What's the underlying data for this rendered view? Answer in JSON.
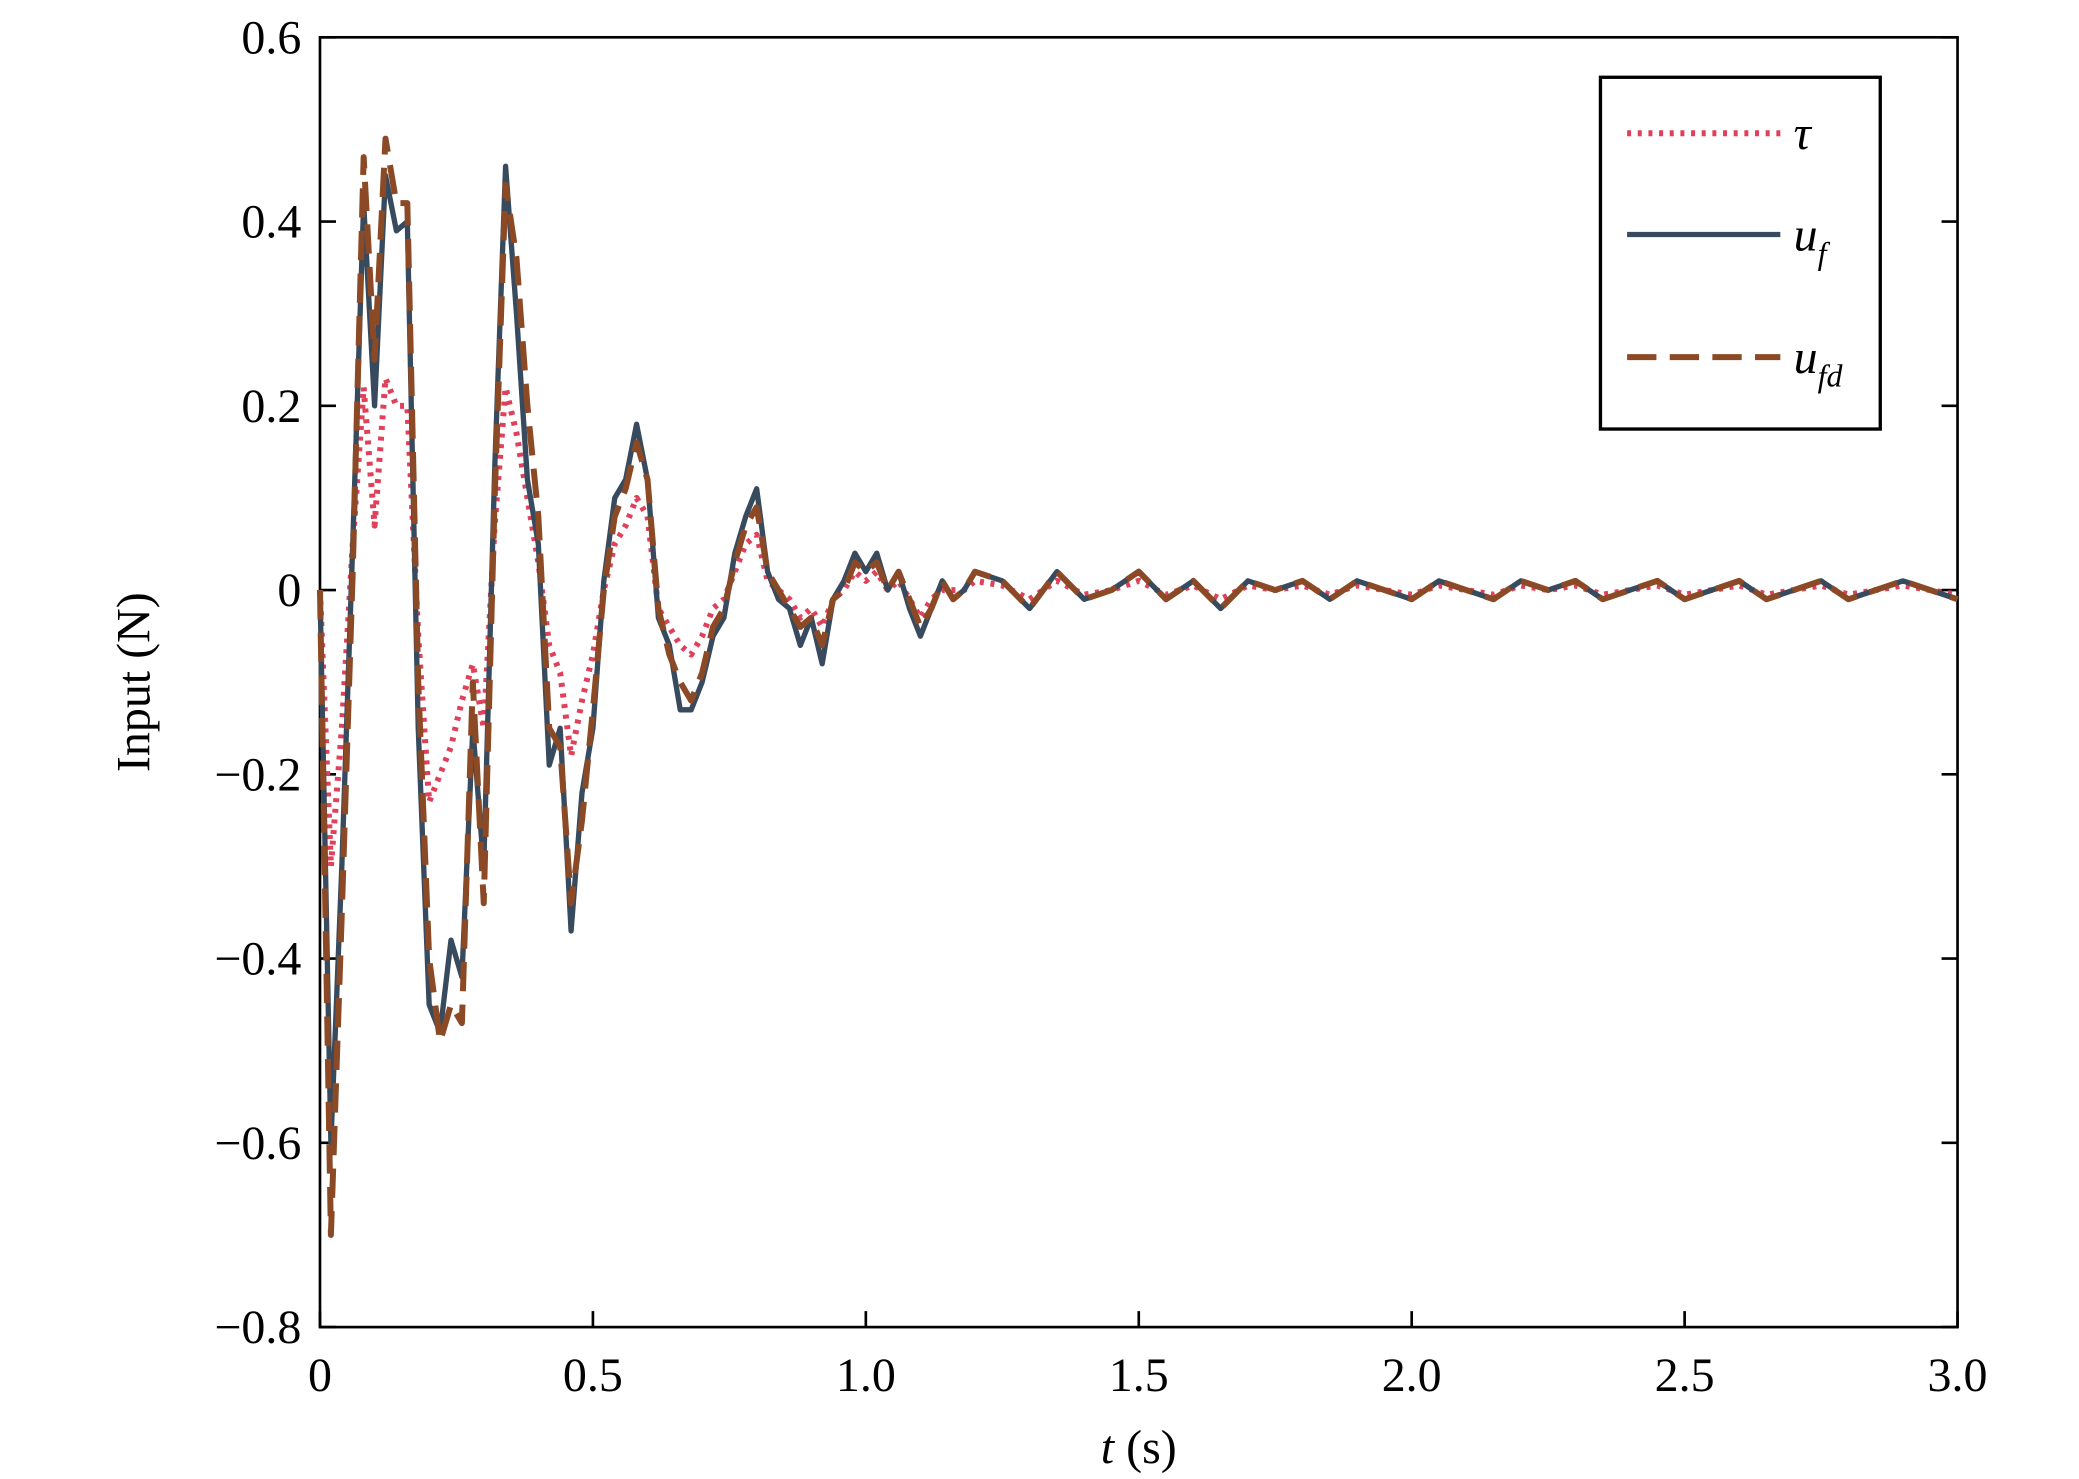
{
  "chart_data": {
    "type": "line",
    "xlabel": "t (s)",
    "ylabel": "Input (N)",
    "xlim": [
      0,
      3
    ],
    "ylim": [
      -0.8,
      0.6
    ],
    "xticks": [
      0,
      0.5,
      {
        "value": 1,
        "label": "1.0"
      },
      1.5,
      {
        "value": 2,
        "label": "2.0"
      },
      2.5,
      {
        "value": 3,
        "label": "3.0"
      }
    ],
    "yticks": [
      {
        "value": -0.8,
        "label": "−0.8"
      },
      {
        "value": -0.6,
        "label": "−0.6"
      },
      {
        "value": -0.4,
        "label": "−0.4"
      },
      {
        "value": -0.2,
        "label": "−0.2"
      },
      0,
      0.2,
      0.4,
      0.6
    ],
    "legend": "upper right",
    "x": [
      0,
      0.02,
      0.04,
      0.06,
      0.08,
      0.1,
      0.12,
      0.14,
      0.16,
      0.18,
      0.2,
      0.22,
      0.24,
      0.26,
      0.28,
      0.3,
      0.32,
      0.34,
      0.36,
      0.38,
      0.4,
      0.42,
      0.44,
      0.46,
      0.48,
      0.5,
      0.52,
      0.54,
      0.56,
      0.58,
      0.6,
      0.62,
      0.64,
      0.66,
      0.68,
      0.7,
      0.72,
      0.74,
      0.76,
      0.78,
      0.8,
      0.82,
      0.84,
      0.86,
      0.88,
      0.9,
      0.92,
      0.94,
      0.96,
      0.98,
      1,
      1.02,
      1.04,
      1.06,
      1.08,
      1.1,
      1.12,
      1.14,
      1.16,
      1.18,
      1.2,
      1.25,
      1.3,
      1.35,
      1.4,
      1.45,
      1.5,
      1.55,
      1.6,
      1.65,
      1.7,
      1.75,
      1.8,
      1.85,
      1.9,
      1.95,
      2,
      2.05,
      2.1,
      2.15,
      2.2,
      2.25,
      2.3,
      2.35,
      2.4,
      2.45,
      2.5,
      2.55,
      2.6,
      2.65,
      2.7,
      2.75,
      2.8,
      2.85,
      2.9,
      2.95,
      3
    ],
    "series": [
      {
        "name": "τ",
        "color": "#e0405a",
        "style": "dotted",
        "values": [
          0,
          -0.3,
          -0.15,
          0.05,
          0.22,
          0.07,
          0.23,
          0.2,
          0.2,
          -0.05,
          -0.23,
          -0.2,
          -0.17,
          -0.12,
          -0.08,
          -0.15,
          0.07,
          0.22,
          0.17,
          0.1,
          0.03,
          -0.06,
          -0.09,
          -0.18,
          -0.12,
          -0.07,
          0,
          0.05,
          0.07,
          0.1,
          0.08,
          -0.02,
          -0.04,
          -0.06,
          -0.07,
          -0.05,
          -0.02,
          -0.01,
          0.02,
          0.05,
          0.06,
          0.01,
          0,
          -0.01,
          -0.03,
          -0.02,
          -0.04,
          -0.01,
          0,
          0.02,
          0.01,
          0.02,
          0,
          0.01,
          -0.01,
          -0.03,
          -0.01,
          0,
          0,
          0,
          0.01,
          0.005,
          -0.01,
          0.01,
          -0.005,
          0,
          0.01,
          -0.005,
          0.005,
          -0.01,
          0.005,
          0,
          0.005,
          -0.005,
          0.005,
          0,
          -0.005,
          0.005,
          0,
          -0.005,
          0.005,
          0,
          0.005,
          -0.005,
          0,
          0.005,
          -0.005,
          0,
          0.005,
          -0.005,
          0,
          0.005,
          -0.005,
          0,
          0.005,
          0,
          -0.005
        ]
      },
      {
        "name": "u_f",
        "color": "#374a5e",
        "style": "solid",
        "values": [
          0,
          -0.6,
          -0.3,
          0.05,
          0.42,
          0.2,
          0.45,
          0.39,
          0.4,
          -0.15,
          -0.45,
          -0.48,
          -0.38,
          -0.42,
          -0.15,
          -0.3,
          0.13,
          0.46,
          0.3,
          0.12,
          0.05,
          -0.19,
          -0.15,
          -0.37,
          -0.22,
          -0.15,
          0.01,
          0.1,
          0.12,
          0.18,
          0.12,
          -0.03,
          -0.06,
          -0.13,
          -0.13,
          -0.1,
          -0.05,
          -0.03,
          0.04,
          0.08,
          0.11,
          0.02,
          -0.01,
          -0.02,
          -0.06,
          -0.03,
          -0.08,
          -0.01,
          0.01,
          0.04,
          0.02,
          0.04,
          0,
          0.02,
          -0.02,
          -0.05,
          -0.02,
          0.01,
          -0.01,
          0,
          0.02,
          0.01,
          -0.02,
          0.02,
          -0.01,
          0,
          0.02,
          -0.01,
          0.01,
          -0.02,
          0.01,
          0,
          0.01,
          -0.01,
          0.01,
          0,
          -0.01,
          0.01,
          0,
          -0.01,
          0.01,
          0,
          0.01,
          -0.01,
          0,
          0.01,
          -0.01,
          0,
          0.01,
          -0.01,
          0,
          0.01,
          -0.01,
          0,
          0.01,
          0,
          -0.01
        ]
      },
      {
        "name": "u_fd",
        "color": "#8b4a25",
        "style": "dashed",
        "values": [
          0,
          -0.7,
          -0.35,
          0.02,
          0.47,
          0.25,
          0.49,
          0.42,
          0.42,
          -0.1,
          -0.4,
          -0.49,
          -0.45,
          -0.47,
          -0.1,
          -0.34,
          0.1,
          0.44,
          0.36,
          0.2,
          0.08,
          -0.15,
          -0.17,
          -0.34,
          -0.25,
          -0.13,
          0,
          0.08,
          0.11,
          0.16,
          0.12,
          -0.02,
          -0.07,
          -0.1,
          -0.12,
          -0.09,
          -0.04,
          -0.02,
          0.03,
          0.07,
          0.09,
          0.02,
          0,
          -0.02,
          -0.04,
          -0.03,
          -0.06,
          -0.01,
          0,
          0.03,
          0.02,
          0.03,
          0,
          0.02,
          -0.01,
          -0.04,
          -0.02,
          0.01,
          -0.01,
          0,
          0.02,
          0.01,
          -0.02,
          0.02,
          -0.01,
          0,
          0.02,
          -0.01,
          0.01,
          -0.02,
          0.01,
          0,
          0.01,
          -0.01,
          0.01,
          0,
          -0.01,
          0.01,
          0,
          -0.01,
          0.01,
          0,
          0.01,
          -0.01,
          0,
          0.01,
          -0.01,
          0,
          0.01,
          -0.01,
          0,
          0.01,
          -0.01,
          0,
          0.01,
          0,
          -0.01
        ]
      }
    ]
  }
}
